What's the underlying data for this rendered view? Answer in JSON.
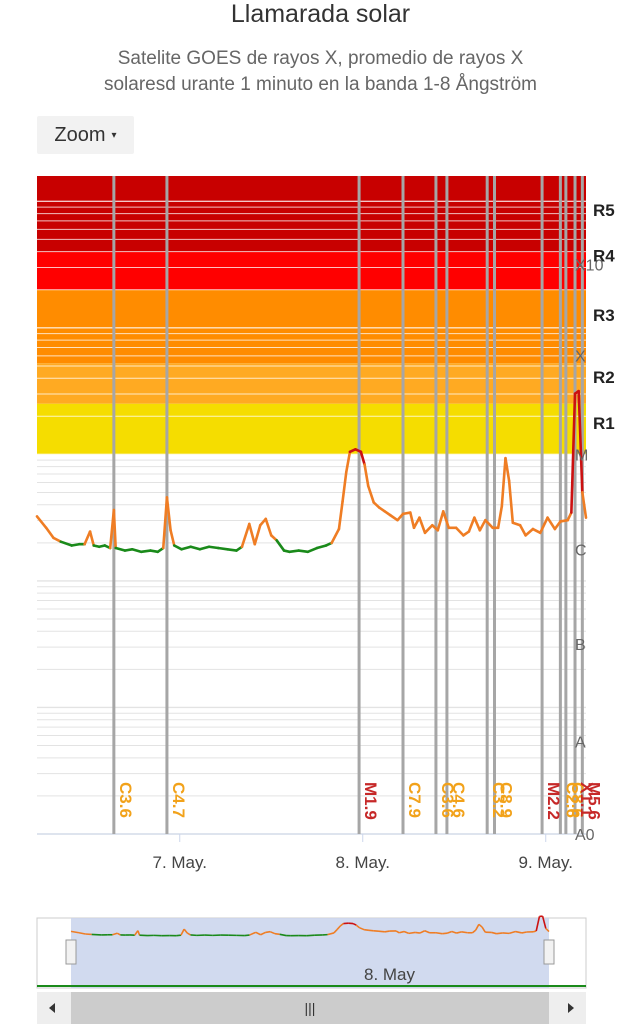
{
  "title": "Llamarada solar",
  "subtitle_lines": [
    "Satelite GOES de rayos X, promedio de rayos X",
    "solaresd urante 1 minuto en la banda 1-8 Ångström"
  ],
  "zoom": {
    "label": "Zoom",
    "caret": "▾"
  },
  "navigator": {
    "label": "8. May",
    "handle_glyph": "|||"
  },
  "colors": {
    "r5": "#c80000",
    "r4": "#ff0000",
    "r3": "#ff8c00",
    "r2": "#ffaa22",
    "r1": "#f5dd00",
    "r1_light": "#ffff33",
    "below_c": "#1a8a1a",
    "flux": "#ef7d24",
    "flare_x": "#cc1111",
    "flare_m": "#c62828",
    "flare_c": "#f2a21a",
    "vline": "#a6a6a6"
  },
  "chart_data": {
    "type": "line",
    "title": "Llamarada solar",
    "yscale": "log",
    "ylim_log10": [
      -8,
      -2.8
    ],
    "classes": [
      {
        "label": "A0",
        "log10": -8
      },
      {
        "label": "A",
        "log10": -7.27
      },
      {
        "label": "B",
        "log10": -6.5
      },
      {
        "label": "C",
        "log10": -5.75
      },
      {
        "label": "M",
        "log10": -5
      },
      {
        "label": "X",
        "log10": -4.22
      },
      {
        "label": "X10",
        "log10": -3.5
      }
    ],
    "radio_blackout_scales": [
      {
        "label": "R5",
        "log10": -3.07
      },
      {
        "label": "R4",
        "log10": -3.43
      },
      {
        "label": "R3",
        "log10": -3.9
      },
      {
        "label": "R2",
        "log10": -4.39
      },
      {
        "label": "R1",
        "log10": -4.75
      }
    ],
    "x_ticks": [
      {
        "label": "7. May.",
        "day": 7.0
      },
      {
        "label": "8. May.",
        "day": 8.0
      },
      {
        "label": "9. May.",
        "day": 9.0
      }
    ],
    "xlim_day": [
      6.22,
      9.22
    ],
    "flux_series": {
      "name": "",
      "points": [
        [
          6.22,
          -5.49
        ],
        [
          6.27,
          -5.58
        ],
        [
          6.31,
          -5.66
        ],
        [
          6.35,
          -5.69
        ],
        [
          6.41,
          -5.72
        ],
        [
          6.45,
          -5.71
        ],
        [
          6.48,
          -5.71
        ],
        [
          6.51,
          -5.61
        ],
        [
          6.53,
          -5.72
        ],
        [
          6.56,
          -5.73
        ],
        [
          6.59,
          -5.72
        ],
        [
          6.62,
          -5.74
        ],
        [
          6.64,
          -5.44
        ],
        [
          6.65,
          -5.74
        ],
        [
          6.7,
          -5.76
        ],
        [
          6.74,
          -5.75
        ],
        [
          6.79,
          -5.77
        ],
        [
          6.84,
          -5.76
        ],
        [
          6.88,
          -5.77
        ],
        [
          6.91,
          -5.74
        ],
        [
          6.93,
          -5.34
        ],
        [
          6.95,
          -5.6
        ],
        [
          6.97,
          -5.72
        ],
        [
          7.01,
          -5.75
        ],
        [
          7.06,
          -5.73
        ],
        [
          7.11,
          -5.75
        ],
        [
          7.16,
          -5.73
        ],
        [
          7.21,
          -5.74
        ],
        [
          7.26,
          -5.75
        ],
        [
          7.31,
          -5.76
        ],
        [
          7.34,
          -5.73
        ],
        [
          7.38,
          -5.55
        ],
        [
          7.41,
          -5.71
        ],
        [
          7.44,
          -5.56
        ],
        [
          7.47,
          -5.51
        ],
        [
          7.5,
          -5.64
        ],
        [
          7.53,
          -5.68
        ],
        [
          7.57,
          -5.76
        ],
        [
          7.6,
          -5.77
        ],
        [
          7.65,
          -5.76
        ],
        [
          7.7,
          -5.77
        ],
        [
          7.75,
          -5.74
        ],
        [
          7.8,
          -5.72
        ],
        [
          7.83,
          -5.7
        ],
        [
          7.87,
          -5.59
        ],
        [
          7.89,
          -5.37
        ],
        [
          7.91,
          -5.14
        ],
        [
          7.93,
          -4.98
        ],
        [
          7.96,
          -4.96
        ],
        [
          7.99,
          -4.98
        ],
        [
          8.01,
          -5.08
        ],
        [
          8.03,
          -5.25
        ],
        [
          8.06,
          -5.38
        ],
        [
          8.09,
          -5.42
        ],
        [
          8.12,
          -5.45
        ],
        [
          8.15,
          -5.48
        ],
        [
          8.19,
          -5.52
        ],
        [
          8.22,
          -5.47
        ],
        [
          8.26,
          -5.46
        ],
        [
          8.28,
          -5.58
        ],
        [
          8.31,
          -5.5
        ],
        [
          8.34,
          -5.62
        ],
        [
          8.38,
          -5.56
        ],
        [
          8.41,
          -5.6
        ],
        [
          8.44,
          -5.45
        ],
        [
          8.47,
          -5.58
        ],
        [
          8.51,
          -5.58
        ],
        [
          8.55,
          -5.64
        ],
        [
          8.58,
          -5.61
        ],
        [
          8.61,
          -5.5
        ],
        [
          8.64,
          -5.6
        ],
        [
          8.67,
          -5.52
        ],
        [
          8.71,
          -5.58
        ],
        [
          8.74,
          -5.58
        ],
        [
          8.76,
          -5.41
        ],
        [
          8.78,
          -5.03
        ],
        [
          8.8,
          -5.21
        ],
        [
          8.82,
          -5.54
        ],
        [
          8.86,
          -5.56
        ],
        [
          8.89,
          -5.64
        ],
        [
          8.93,
          -5.59
        ],
        [
          8.97,
          -5.62
        ],
        [
          9.01,
          -5.5
        ],
        [
          9.05,
          -5.59
        ],
        [
          9.08,
          -5.53
        ],
        [
          9.12,
          -5.52
        ],
        [
          9.14,
          -5.46
        ],
        [
          9.16,
          -4.52
        ],
        [
          9.18,
          -4.5
        ],
        [
          9.2,
          -5.3
        ],
        [
          9.22,
          -5.5
        ]
      ]
    },
    "flares": [
      {
        "label": "C3.6",
        "day": 6.64,
        "class": "C"
      },
      {
        "label": "C4.7",
        "day": 6.93,
        "class": "C"
      },
      {
        "label": "M1.9",
        "day": 7.98,
        "class": "M"
      },
      {
        "label": "C7.9",
        "day": 8.22,
        "class": "C"
      },
      {
        "label": "C3.6",
        "day": 8.4,
        "class": "C"
      },
      {
        "label": "C4.6",
        "day": 8.46,
        "class": "C"
      },
      {
        "label": "C3.2",
        "day": 8.68,
        "class": "C"
      },
      {
        "label": "C8.9",
        "day": 8.72,
        "class": "C"
      },
      {
        "label": "M2.2",
        "day": 8.98,
        "class": "M"
      },
      {
        "label": "C2.6",
        "day": 9.08,
        "class": "C"
      },
      {
        "label": "C8.6",
        "day": 9.11,
        "class": "C"
      },
      {
        "label": "X1.1",
        "day": 9.16,
        "class": "X"
      },
      {
        "label": "M5.6",
        "day": 9.2,
        "class": "M"
      }
    ]
  }
}
